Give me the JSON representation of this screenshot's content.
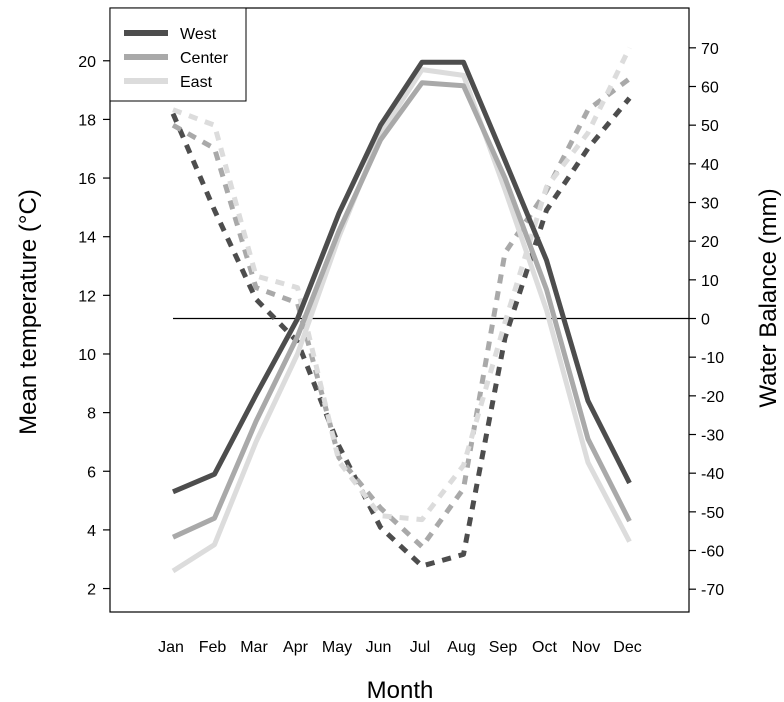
{
  "chart_data": {
    "type": "line",
    "categories": [
      "Jan",
      "Feb",
      "Mar",
      "Apr",
      "May",
      "Jun",
      "Jul",
      "Aug",
      "Sep",
      "Oct",
      "Nov",
      "Dec"
    ],
    "xlabel": "Month",
    "ylabel": "Mean temperature (°C)",
    "y2label": "Water Balance (mm)",
    "ylim": [
      1.2,
      21.8
    ],
    "y2lim": [
      -75.9,
      80.3
    ],
    "yticks": [
      2,
      4,
      6,
      8,
      10,
      12,
      14,
      16,
      18,
      20
    ],
    "y2ticks": [
      70,
      60,
      50,
      40,
      30,
      20,
      10,
      0,
      -10,
      -20,
      -30,
      -40,
      -50,
      -60,
      -70
    ],
    "zero_line": 0,
    "legend_position": "top-left",
    "temperature_series": [
      {
        "name": "West",
        "color": "#4d4d4d",
        "values": [
          5.3,
          5.9,
          8.6,
          11.2,
          14.8,
          17.8,
          19.95,
          19.95,
          16.6,
          13.2,
          8.4,
          5.6
        ]
      },
      {
        "name": "Center",
        "color": "#a9a9a9",
        "values": [
          3.75,
          4.4,
          7.7,
          10.6,
          14.2,
          17.3,
          19.25,
          19.15,
          16.0,
          12.2,
          7.1,
          4.3
        ]
      },
      {
        "name": "East",
        "color": "#dcdcdc",
        "values": [
          2.6,
          3.5,
          7.0,
          10.0,
          14.0,
          17.5,
          19.7,
          19.5,
          15.6,
          11.5,
          6.3,
          3.6
        ]
      }
    ],
    "water_balance_series": [
      {
        "name": "West",
        "color": "#4d4d4d",
        "values": [
          53,
          28,
          5,
          -6,
          -33,
          -54,
          -64,
          -61,
          -5,
          28,
          44,
          57
        ]
      },
      {
        "name": "Center",
        "color": "#a9a9a9",
        "values": [
          50,
          44,
          8,
          4,
          -36,
          -49,
          -59,
          -44,
          17,
          33,
          54,
          62
        ]
      },
      {
        "name": "East",
        "color": "#dcdcdc",
        "values": [
          54,
          50,
          11,
          8,
          -37,
          -51,
          -52,
          -38,
          -1,
          34,
          48,
          70
        ]
      }
    ]
  }
}
